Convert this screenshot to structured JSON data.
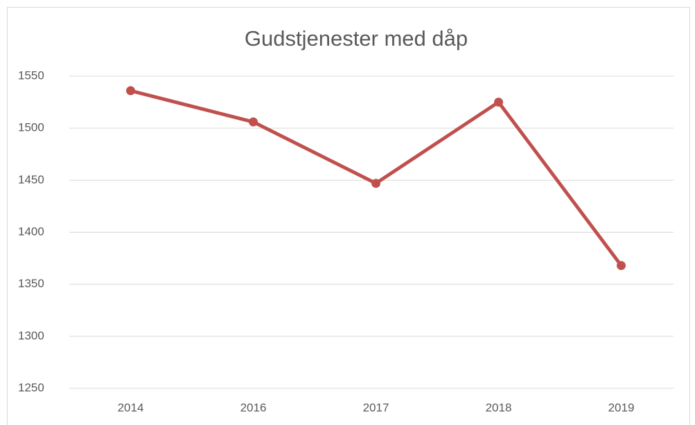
{
  "chart_data": {
    "type": "line",
    "title": "Gudstjenester med dåp",
    "categories": [
      "2014",
      "2016",
      "2017",
      "2018",
      "2019"
    ],
    "series": [
      {
        "name": "Gudstjenester med dåp",
        "color": "#c0504d",
        "values": [
          1536,
          1506,
          1447,
          1525,
          1368
        ]
      }
    ],
    "ylim": [
      1250,
      1550
    ],
    "yticks": [
      1250,
      1300,
      1350,
      1400,
      1450,
      1500,
      1550
    ],
    "grid": true
  }
}
